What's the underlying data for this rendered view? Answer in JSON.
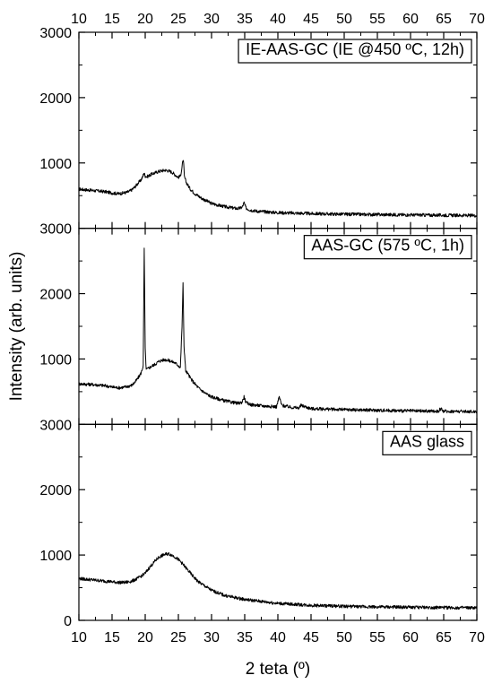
{
  "chart_data": {
    "type": "line",
    "xlabel": "2 teta (º)",
    "ylabel": "Intensity (arb. units)",
    "xlim": [
      10,
      70
    ],
    "xticks": [
      10,
      15,
      20,
      25,
      30,
      35,
      40,
      45,
      50,
      55,
      60,
      65,
      70
    ],
    "panels": [
      {
        "legend": "IE-AAS-GC (IE @450 ºC, 12h)",
        "ylim": [
          0,
          3000
        ],
        "yticks": [
          3000,
          2000,
          1000
        ],
        "color": "#000000",
        "series": [
          {
            "x": [
              10,
              12,
              14,
              15,
              16,
              17,
              17.5,
              18,
              18.5,
              19,
              19.3,
              19.6,
              19.8,
              20,
              20.3,
              20.8,
              21.5,
              22,
              22.5,
              23,
              23.5,
              24,
              24.5,
              25,
              25.3,
              25.5,
              25.7,
              25.8,
              25.9,
              26.2,
              26.8,
              27.5,
              28.5,
              30,
              32,
              34,
              34.6,
              34.9,
              35.2,
              35.8,
              37,
              40,
              45,
              50,
              55,
              60,
              65,
              70
            ],
            "y": [
              600,
              580,
              560,
              540,
              530,
              545,
              560,
              590,
              640,
              700,
              730,
              780,
              850,
              800,
              790,
              820,
              850,
              870,
              880,
              890,
              880,
              860,
              820,
              780,
              800,
              900,
              1050,
              980,
              790,
              700,
              600,
              530,
              460,
              380,
              330,
              300,
              320,
              390,
              310,
              280,
              260,
              240,
              225,
              215,
              210,
              205,
              200,
              195
            ]
          }
        ]
      },
      {
        "legend": "AAS-GC (575 ºC, 1h)",
        "ylim": [
          0,
          3000
        ],
        "yticks": [
          3000,
          2000,
          1000
        ],
        "color": "#000000",
        "series": [
          {
            "x": [
              10,
              12,
              14,
              15,
              16,
              17,
              18,
              18.5,
              19,
              19.4,
              19.7,
              19.85,
              20,
              20.15,
              20.4,
              20.8,
              21.5,
              22,
              22.5,
              23,
              23.5,
              24,
              24.5,
              25,
              25.3,
              25.55,
              25.7,
              25.85,
              26.1,
              26.5,
              27,
              28,
              29,
              30,
              32,
              34,
              34.6,
              34.9,
              35.2,
              36,
              38,
              39.8,
              40.2,
              40.6,
              42,
              43.2,
              43.5,
              45,
              50,
              55,
              60,
              64.2,
              64.5,
              65,
              70
            ],
            "y": [
              620,
              610,
              590,
              570,
              560,
              570,
              600,
              650,
              720,
              790,
              900,
              2700,
              1150,
              840,
              850,
              880,
              920,
              960,
              980,
              990,
              980,
              960,
              940,
              900,
              870,
              1500,
              2150,
              1200,
              820,
              760,
              680,
              560,
              480,
              420,
              360,
              320,
              340,
              420,
              330,
              300,
              280,
              270,
              420,
              290,
              260,
              250,
              290,
              240,
              225,
              215,
              205,
              200,
              240,
              200,
              195
            ]
          }
        ]
      },
      {
        "legend": "AAS glass",
        "ylim": [
          0,
          3000
        ],
        "yticks": [
          3000,
          2000,
          1000,
          0
        ],
        "color": "#000000",
        "series": [
          {
            "x": [
              10,
              11,
              12,
              13,
              14,
              15,
              16,
              17,
              18,
              19,
              20,
              20.5,
              21,
              21.5,
              22,
              22.5,
              23,
              23.5,
              24,
              24.5,
              25,
              25.5,
              26,
              27,
              28,
              30,
              32,
              35,
              40,
              45,
              50,
              55,
              60,
              65,
              70
            ],
            "y": [
              640,
              630,
              620,
              610,
              600,
              590,
              580,
              580,
              600,
              650,
              720,
              790,
              850,
              910,
              960,
              990,
              1010,
              1020,
              1000,
              970,
              930,
              880,
              820,
              700,
              590,
              460,
              380,
              320,
              260,
              230,
              215,
              205,
              200,
              195,
              190
            ]
          }
        ]
      }
    ]
  }
}
